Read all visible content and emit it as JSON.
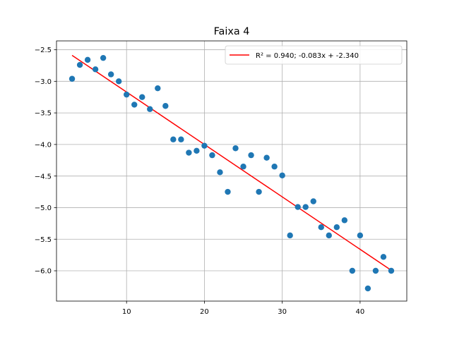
{
  "chart_data": {
    "type": "scatter",
    "title": "Faixa 4",
    "xlabel": "",
    "ylabel": "",
    "xlim": [
      1.0,
      46.0
    ],
    "ylim": [
      -6.48,
      -2.36
    ],
    "xticks": [
      10,
      20,
      30,
      40
    ],
    "yticks": [
      -2.5,
      -3.0,
      -3.5,
      -4.0,
      -4.5,
      -5.0,
      -5.5,
      -6.0
    ],
    "xtick_labels": [
      "10",
      "20",
      "30",
      "40"
    ],
    "ytick_labels": [
      "−2.5",
      "−3.0",
      "−3.5",
      "−4.0",
      "−4.5",
      "−5.0",
      "−5.5",
      "−6.0"
    ],
    "grid": true,
    "legend_position": "top-right",
    "colors": {
      "points": "#1f77b4",
      "fit": "#ff0000",
      "grid": "#b0b0b0"
    },
    "series": [
      {
        "type": "scatter",
        "x": [
          3,
          4,
          5,
          6,
          7,
          8,
          9,
          10,
          11,
          12,
          13,
          14,
          15,
          16,
          17,
          18,
          19,
          20,
          21,
          22,
          23,
          24,
          25,
          26,
          27,
          28,
          29,
          30,
          31,
          32,
          33,
          34,
          35,
          36,
          37,
          38,
          39,
          40,
          41,
          42,
          43,
          44
        ],
        "y": [
          -2.96,
          -2.74,
          -2.66,
          -2.81,
          -2.63,
          -2.89,
          -3.0,
          -3.21,
          -3.37,
          -3.25,
          -3.44,
          -3.11,
          -3.39,
          -3.92,
          -3.92,
          -4.13,
          -4.1,
          -4.02,
          -4.17,
          -4.44,
          -4.75,
          -4.06,
          -4.35,
          -4.17,
          -4.75,
          -4.21,
          -4.35,
          -4.49,
          -5.44,
          -4.99,
          -4.99,
          -4.9,
          -5.31,
          -5.44,
          -5.31,
          -5.2,
          -6.0,
          -5.44,
          -6.28,
          -6.0,
          -5.78,
          -6.0
        ]
      },
      {
        "type": "line",
        "name": "R² = 0.940; -0.083x + -2.340",
        "x": [
          3,
          44
        ],
        "y": [
          -2.589,
          -5.992
        ]
      }
    ]
  }
}
